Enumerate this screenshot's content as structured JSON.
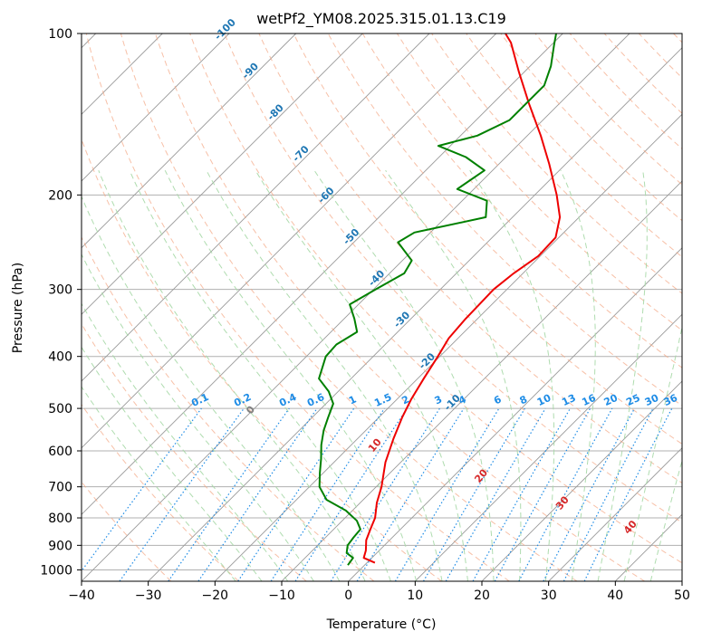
{
  "chart_data": {
    "type": "line",
    "title": "wetPf2_YM08.2025.315.01.13.C19",
    "xlabel": "Temperature (°C)",
    "ylabel": "Pressure (hPa)",
    "xlim": [
      -40,
      50
    ],
    "ylim": [
      1050,
      100
    ],
    "y_scale": "log",
    "x_ticks": [
      -40,
      -30,
      -20,
      -10,
      0,
      10,
      20,
      30,
      40,
      50
    ],
    "x_tick_labels": [
      "−40",
      "−30",
      "−20",
      "−10",
      "0",
      "10",
      "20",
      "30",
      "40",
      "50"
    ],
    "y_ticks": [
      100,
      200,
      300,
      400,
      500,
      600,
      700,
      800,
      900,
      1000
    ],
    "y_tick_labels": [
      "100",
      "200",
      "300",
      "400",
      "500",
      "600",
      "700",
      "800",
      "900",
      "1000"
    ],
    "grid": true,
    "colors": {
      "temperature": "#ee0000",
      "dewpoint": "#008000",
      "isotherm": "#999999",
      "isotherm_label": "#1f77b4",
      "dry_adiabat": "#f4a582",
      "moist_adiabat": "#a6d8a6",
      "mixing_ratio": "#1e8ce6",
      "grid": "#b0b0b0",
      "theta_label": "#d62728"
    },
    "series": [
      {
        "key": "temperature",
        "points": [
          [
            1.2,
            970
          ],
          [
            -1.2,
            950
          ],
          [
            -2.0,
            920
          ],
          [
            -3.5,
            880
          ],
          [
            -4.5,
            840
          ],
          [
            -5.5,
            800
          ],
          [
            -7.5,
            750
          ],
          [
            -9.2,
            700
          ],
          [
            -12.3,
            630
          ],
          [
            -14.6,
            570
          ],
          [
            -16.5,
            520
          ],
          [
            -17.9,
            480
          ],
          [
            -19.1,
            440
          ],
          [
            -20.3,
            400
          ],
          [
            -21.4,
            370
          ],
          [
            -21.8,
            340
          ],
          [
            -21.9,
            320
          ],
          [
            -22.0,
            300
          ],
          [
            -21.4,
            280
          ],
          [
            -20.3,
            260
          ],
          [
            -20.5,
            240
          ],
          [
            -22.9,
            220
          ],
          [
            -26.7,
            200
          ],
          [
            -32.5,
            175
          ],
          [
            -38.0,
            155
          ],
          [
            -44.6,
            135
          ],
          [
            -50.8,
            118
          ],
          [
            -56.4,
            104
          ],
          [
            -58.6,
            100
          ]
        ]
      },
      {
        "key": "dewpoint",
        "points": [
          [
            -2.5,
            980
          ],
          [
            -2.8,
            950
          ],
          [
            -4.5,
            930
          ],
          [
            -5.5,
            900
          ],
          [
            -5.8,
            870
          ],
          [
            -6.0,
            840
          ],
          [
            -7.8,
            810
          ],
          [
            -11.0,
            775
          ],
          [
            -15.5,
            740
          ],
          [
            -18.5,
            700
          ],
          [
            -20.5,
            660
          ],
          [
            -22.5,
            620
          ],
          [
            -24.5,
            585
          ],
          [
            -26.3,
            550
          ],
          [
            -27.6,
            520
          ],
          [
            -28.9,
            490
          ],
          [
            -31.4,
            465
          ],
          [
            -34.8,
            440
          ],
          [
            -37.1,
            400
          ],
          [
            -37.3,
            380
          ],
          [
            -36.1,
            360
          ],
          [
            -38.5,
            340
          ],
          [
            -41.3,
            320
          ],
          [
            -39.7,
            300
          ],
          [
            -37.8,
            280
          ],
          [
            -38.6,
            265
          ],
          [
            -43.4,
            245
          ],
          [
            -42.4,
            235
          ],
          [
            -34.0,
            220
          ],
          [
            -36.3,
            205
          ],
          [
            -42.5,
            195
          ],
          [
            -41.2,
            180
          ],
          [
            -46.0,
            170
          ],
          [
            -51.8,
            162
          ],
          [
            -47.5,
            155
          ],
          [
            -45.0,
            145
          ],
          [
            -45.0,
            135
          ],
          [
            -45.0,
            125
          ],
          [
            -46.9,
            115
          ],
          [
            -49.6,
            105
          ],
          [
            -51.0,
            100
          ]
        ]
      }
    ],
    "isotherm_labels": [
      {
        "text": "-100",
        "t": -100
      },
      {
        "text": "-90",
        "t": -90
      },
      {
        "text": "-80",
        "t": -80
      },
      {
        "text": "-70",
        "t": -70
      },
      {
        "text": "-60",
        "t": -60
      },
      {
        "text": "-50",
        "t": -50
      },
      {
        "text": "-40",
        "t": -40
      },
      {
        "text": "-30",
        "t": -30
      },
      {
        "text": "-20",
        "t": -20
      },
      {
        "text": "-10",
        "t": -10
      }
    ],
    "mixing_ratio_labels": [
      "0.1",
      "0.2",
      "0.4",
      "0.6",
      "1",
      "1.5",
      "2",
      "3",
      "4",
      "6",
      "8",
      "10",
      "13",
      "16",
      "20",
      "25",
      "30",
      "36"
    ],
    "mixing_ratio_values": [
      0.1,
      0.2,
      0.4,
      0.6,
      1,
      1.5,
      2,
      3,
      4,
      6,
      8,
      10,
      13,
      16,
      20,
      25,
      30,
      36
    ],
    "theta_labels": [
      {
        "text": "0",
        "t": 0,
        "color": "#808080"
      },
      {
        "text": "10",
        "t": 10,
        "color": "#d62728"
      },
      {
        "text": "20",
        "t": 20,
        "color": "#d62728"
      },
      {
        "text": "30",
        "t": 30,
        "color": "#d62728"
      },
      {
        "text": "40",
        "t": 40,
        "color": "#d62728"
      }
    ]
  }
}
